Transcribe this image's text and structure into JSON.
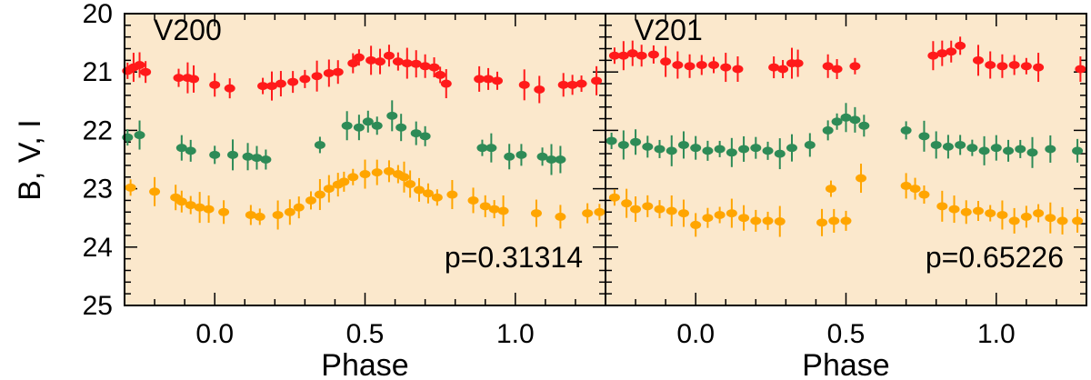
{
  "chart_data": {
    "type": "scatter",
    "ylabel": "B, V, I",
    "ylim": [
      25,
      20
    ],
    "y_ticks": [
      20,
      21,
      22,
      23,
      24,
      25
    ],
    "background_color": "#fbe8cc",
    "marker_colors": {
      "B": "#ff1a1a",
      "V": "#2e8b57",
      "I": "#ffa500"
    },
    "panels": [
      {
        "label": "V200",
        "period_label": "p=0.31314",
        "xlabel": "Phase",
        "xlim": [
          -0.3,
          1.3
        ],
        "x_ticks": [
          0.0,
          0.5,
          1.0
        ],
        "x_tick_labels": [
          "0.0",
          "0.5",
          "1.0"
        ],
        "series": [
          {
            "name": "B",
            "color": "#ff1a1a",
            "points": [
              [
                -0.29,
                20.98
              ],
              [
                -0.27,
                20.92
              ],
              [
                -0.25,
                20.88
              ],
              [
                -0.23,
                21.0
              ],
              [
                -0.12,
                21.1
              ],
              [
                -0.09,
                21.1
              ],
              [
                -0.07,
                21.12
              ],
              [
                0.0,
                21.22
              ],
              [
                0.05,
                21.28
              ],
              [
                0.16,
                21.24
              ],
              [
                0.19,
                21.24
              ],
              [
                0.22,
                21.2
              ],
              [
                0.26,
                21.17
              ],
              [
                0.3,
                21.12
              ],
              [
                0.34,
                21.07
              ],
              [
                0.38,
                21.02
              ],
              [
                0.41,
                21.0
              ],
              [
                0.46,
                20.85
              ],
              [
                0.48,
                20.75
              ],
              [
                0.52,
                20.8
              ],
              [
                0.55,
                20.82
              ],
              [
                0.58,
                20.72
              ],
              [
                0.61,
                20.82
              ],
              [
                0.64,
                20.85
              ],
              [
                0.67,
                20.86
              ],
              [
                0.7,
                20.9
              ],
              [
                0.73,
                20.92
              ],
              [
                0.75,
                21.05
              ],
              [
                0.77,
                21.2
              ],
              [
                0.88,
                21.12
              ],
              [
                0.91,
                21.12
              ],
              [
                0.94,
                21.15
              ],
              [
                1.03,
                21.22
              ],
              [
                1.08,
                21.3
              ],
              [
                1.16,
                21.22
              ],
              [
                1.19,
                21.22
              ],
              [
                1.22,
                21.2
              ],
              [
                1.27,
                21.15
              ]
            ]
          },
          {
            "name": "V",
            "color": "#2e8b57",
            "points": [
              [
                -0.29,
                22.12
              ],
              [
                -0.25,
                22.08
              ],
              [
                -0.11,
                22.3
              ],
              [
                -0.08,
                22.35
              ],
              [
                0.0,
                22.42
              ],
              [
                0.06,
                22.42
              ],
              [
                0.11,
                22.45
              ],
              [
                0.14,
                22.47
              ],
              [
                0.17,
                22.5
              ],
              [
                0.35,
                22.25
              ],
              [
                0.44,
                21.92
              ],
              [
                0.48,
                21.95
              ],
              [
                0.51,
                21.85
              ],
              [
                0.54,
                21.92
              ],
              [
                0.59,
                21.75
              ],
              [
                0.62,
                21.95
              ],
              [
                0.67,
                22.05
              ],
              [
                0.7,
                22.1
              ],
              [
                0.89,
                22.3
              ],
              [
                0.92,
                22.3
              ],
              [
                0.98,
                22.45
              ],
              [
                1.02,
                22.42
              ],
              [
                1.09,
                22.45
              ],
              [
                1.12,
                22.5
              ],
              [
                1.15,
                22.5
              ]
            ]
          },
          {
            "name": "I",
            "color": "#ffa500",
            "points": [
              [
                -0.28,
                22.98
              ],
              [
                -0.2,
                23.05
              ],
              [
                -0.13,
                23.15
              ],
              [
                -0.11,
                23.22
              ],
              [
                -0.08,
                23.28
              ],
              [
                -0.05,
                23.32
              ],
              [
                -0.02,
                23.35
              ],
              [
                0.03,
                23.4
              ],
              [
                0.12,
                23.45
              ],
              [
                0.15,
                23.48
              ],
              [
                0.21,
                23.45
              ],
              [
                0.25,
                23.4
              ],
              [
                0.28,
                23.32
              ],
              [
                0.32,
                23.2
              ],
              [
                0.35,
                23.1
              ],
              [
                0.38,
                23.0
              ],
              [
                0.41,
                22.93
              ],
              [
                0.43,
                22.88
              ],
              [
                0.46,
                22.8
              ],
              [
                0.5,
                22.75
              ],
              [
                0.54,
                22.72
              ],
              [
                0.58,
                22.7
              ],
              [
                0.61,
                22.75
              ],
              [
                0.63,
                22.8
              ],
              [
                0.65,
                22.92
              ],
              [
                0.68,
                23.02
              ],
              [
                0.71,
                23.08
              ],
              [
                0.74,
                23.15
              ],
              [
                0.79,
                23.1
              ],
              [
                0.86,
                23.2
              ],
              [
                0.9,
                23.3
              ],
              [
                0.93,
                23.35
              ],
              [
                0.96,
                23.38
              ],
              [
                1.07,
                23.42
              ],
              [
                1.15,
                23.48
              ],
              [
                1.24,
                23.42
              ],
              [
                1.28,
                23.4
              ]
            ]
          }
        ]
      },
      {
        "label": "V201",
        "period_label": "p=0.65226",
        "xlabel": "Phase",
        "xlim": [
          -0.3,
          1.3
        ],
        "x_ticks": [
          0.0,
          0.5,
          1.0
        ],
        "x_tick_labels": [
          "0.0",
          "0.5",
          "1.0"
        ],
        "series": [
          {
            "name": "B",
            "color": "#ff1a1a",
            "points": [
              [
                -0.27,
                20.72
              ],
              [
                -0.24,
                20.72
              ],
              [
                -0.21,
                20.68
              ],
              [
                -0.18,
                20.72
              ],
              [
                -0.14,
                20.7
              ],
              [
                -0.1,
                20.82
              ],
              [
                -0.06,
                20.88
              ],
              [
                -0.02,
                20.9
              ],
              [
                0.02,
                20.88
              ],
              [
                0.06,
                20.88
              ],
              [
                0.1,
                20.92
              ],
              [
                0.14,
                20.95
              ],
              [
                0.26,
                20.92
              ],
              [
                0.29,
                20.95
              ],
              [
                0.32,
                20.85
              ],
              [
                0.34,
                20.85
              ],
              [
                0.44,
                20.9
              ],
              [
                0.47,
                20.95
              ],
              [
                0.53,
                20.9
              ],
              [
                0.79,
                20.72
              ],
              [
                0.82,
                20.68
              ],
              [
                0.85,
                20.65
              ],
              [
                0.88,
                20.55
              ],
              [
                0.94,
                20.8
              ],
              [
                0.98,
                20.88
              ],
              [
                1.02,
                20.9
              ],
              [
                1.06,
                20.88
              ],
              [
                1.1,
                20.9
              ],
              [
                1.14,
                20.92
              ],
              [
                1.28,
                20.95
              ]
            ]
          },
          {
            "name": "V",
            "color": "#2e8b57",
            "points": [
              [
                -0.28,
                22.18
              ],
              [
                -0.24,
                22.25
              ],
              [
                -0.2,
                22.2
              ],
              [
                -0.16,
                22.28
              ],
              [
                -0.12,
                22.32
              ],
              [
                -0.08,
                22.35
              ],
              [
                -0.04,
                22.25
              ],
              [
                0.0,
                22.3
              ],
              [
                0.04,
                22.35
              ],
              [
                0.08,
                22.32
              ],
              [
                0.12,
                22.38
              ],
              [
                0.16,
                22.32
              ],
              [
                0.2,
                22.3
              ],
              [
                0.24,
                22.35
              ],
              [
                0.28,
                22.4
              ],
              [
                0.32,
                22.3
              ],
              [
                0.38,
                22.25
              ],
              [
                0.44,
                22.0
              ],
              [
                0.47,
                21.85
              ],
              [
                0.5,
                21.78
              ],
              [
                0.53,
                21.82
              ],
              [
                0.56,
                21.92
              ],
              [
                0.7,
                22.0
              ],
              [
                0.76,
                22.1
              ],
              [
                0.8,
                22.25
              ],
              [
                0.84,
                22.28
              ],
              [
                0.88,
                22.25
              ],
              [
                0.92,
                22.3
              ],
              [
                0.96,
                22.35
              ],
              [
                1.0,
                22.3
              ],
              [
                1.04,
                22.35
              ],
              [
                1.08,
                22.32
              ],
              [
                1.12,
                22.38
              ],
              [
                1.18,
                22.32
              ],
              [
                1.27,
                22.35
              ]
            ]
          },
          {
            "name": "I",
            "color": "#ffa500",
            "points": [
              [
                -0.27,
                23.15
              ],
              [
                -0.23,
                23.25
              ],
              [
                -0.2,
                23.35
              ],
              [
                -0.16,
                23.3
              ],
              [
                -0.12,
                23.35
              ],
              [
                -0.08,
                23.38
              ],
              [
                -0.04,
                23.42
              ],
              [
                0.0,
                23.62
              ],
              [
                0.04,
                23.5
              ],
              [
                0.08,
                23.45
              ],
              [
                0.12,
                23.42
              ],
              [
                0.16,
                23.5
              ],
              [
                0.2,
                23.55
              ],
              [
                0.24,
                23.55
              ],
              [
                0.28,
                23.56
              ],
              [
                0.42,
                23.58
              ],
              [
                0.46,
                23.55
              ],
              [
                0.5,
                23.55
              ],
              [
                0.45,
                23.0
              ],
              [
                0.55,
                22.82
              ],
              [
                0.7,
                22.95
              ],
              [
                0.73,
                23.0
              ],
              [
                0.76,
                23.1
              ],
              [
                0.82,
                23.3
              ],
              [
                0.86,
                23.35
              ],
              [
                0.9,
                23.4
              ],
              [
                0.94,
                23.38
              ],
              [
                0.98,
                23.42
              ],
              [
                1.02,
                23.45
              ],
              [
                1.06,
                23.55
              ],
              [
                1.1,
                23.48
              ],
              [
                1.14,
                23.42
              ],
              [
                1.18,
                23.5
              ],
              [
                1.22,
                23.55
              ],
              [
                1.27,
                23.55
              ]
            ]
          }
        ]
      }
    ]
  }
}
